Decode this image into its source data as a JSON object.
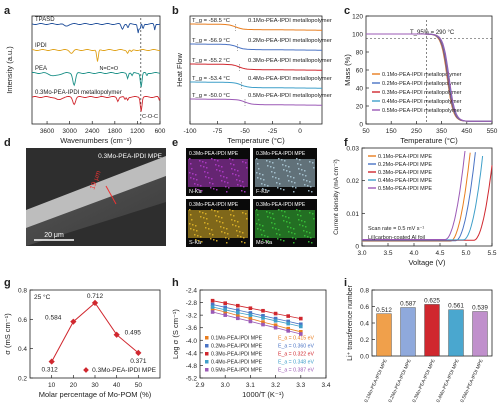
{
  "chart_data": [
    {
      "panel": "a",
      "type": "line",
      "xlabel": "Wavenumbers (cm⁻¹)",
      "ylabel": "Intensity (a.u.)",
      "xlim": [
        4000,
        600
      ],
      "xticks": [
        3600,
        3000,
        2400,
        1800,
        1200,
        600
      ],
      "grid": false,
      "series": [
        {
          "name": "TPASD",
          "color": "#1f4e9a"
        },
        {
          "name": "IPDI",
          "color": "#e0a21a"
        },
        {
          "name": "PEA",
          "color": "#1a8f86"
        },
        {
          "name": "0.3Mo-PEA-IPDI metallopolymer",
          "color": "#d0272e"
        }
      ],
      "annotations": [
        "N=C=O",
        "C-O-C"
      ]
    },
    {
      "panel": "b",
      "type": "line",
      "xlabel": "Temperature (°C)",
      "ylabel": "Heat Flow",
      "xlim": [
        -100,
        20
      ],
      "xticks": [
        -100,
        -75,
        -50,
        -25,
        0
      ],
      "series": [
        {
          "name": "0.1Mo-PEA-IPDI metallopolymer",
          "tg_label": "T_g = -58.5 °C",
          "tg": -58.5,
          "color": "#e87d1e"
        },
        {
          "name": "0.2Mo-PEA-IPDI metallopolymer",
          "tg_label": "T_g = -56.9 °C",
          "tg": -56.9,
          "color": "#4a73c4"
        },
        {
          "name": "0.3Mo-PEA-IPDI metallopolymer",
          "tg_label": "T_g = -55.2 °C",
          "tg": -55.2,
          "color": "#d0272e"
        },
        {
          "name": "0.4Mo-PEA-IPDI metallopolymer",
          "tg_label": "T_g = -53.4 °C",
          "tg": -53.4,
          "color": "#3f9fc9"
        },
        {
          "name": "0.5Mo-PEA-IPDI metallopolymer",
          "tg_label": "T_g = -50.0 °C",
          "tg": -50.0,
          "color": "#9b59b6"
        }
      ]
    },
    {
      "panel": "c",
      "type": "line",
      "xlabel": "Temperature (°C)",
      "ylabel": "Mass (%)",
      "xlim": [
        50,
        550
      ],
      "ylim": [
        0,
        120
      ],
      "xticks": [
        50,
        150,
        250,
        350,
        450,
        550
      ],
      "yticks": [
        0,
        20,
        40,
        60,
        80,
        100,
        120
      ],
      "annotation": "T_95% = 290 °C",
      "t95": 290,
      "series": [
        {
          "name": "0.1Mo-PEA-IPDI metallopolymer",
          "color": "#e87d1e"
        },
        {
          "name": "0.2Mo-PEA-IPDI metallopolymer",
          "color": "#4a73c4"
        },
        {
          "name": "0.3Mo-PEA-IPDI metallopolymer",
          "color": "#d0272e"
        },
        {
          "name": "0.4Mo-PEA-IPDI metallopolymer",
          "color": "#3f9fc9"
        },
        {
          "name": "0.5Mo-PEA-IPDI metallopolymer",
          "color": "#9b59b6"
        }
      ]
    },
    {
      "panel": "d",
      "type": "image",
      "label": "0.3Mo-PEA-IPDI MPE",
      "thickness": "19 μm",
      "scalebar": "20 μm"
    },
    {
      "panel": "e",
      "type": "image",
      "tiles": [
        {
          "sample": "0.3Mo-PEA-IPDI MPE",
          "element": "N-Ka",
          "color": "#b03cc8"
        },
        {
          "sample": "0.3Mo-PEA-IPDI MPE",
          "element": "F-Ka",
          "color": "#a9c6d6"
        },
        {
          "sample": "0.3Mo-PEA-IPDI MPE",
          "element": "S-Ka",
          "color": "#e0b428"
        },
        {
          "sample": "0.3Mo-PEA-IPDI MPE",
          "element": "Mo-Ka",
          "color": "#38c238"
        }
      ]
    },
    {
      "panel": "f",
      "type": "line",
      "xlabel": "Voltage (V)",
      "ylabel": "Current density (mA cm⁻²)",
      "xlim": [
        3.0,
        5.5
      ],
      "ylim": [
        0,
        0.03
      ],
      "xticks": [
        3.0,
        3.5,
        4.0,
        4.5,
        5.0,
        5.5
      ],
      "yticks": [
        0,
        0.01,
        0.02,
        0.03
      ],
      "notes": [
        "Scan rate = 0.5 mV s⁻¹",
        "Li||carbon-coated Al foil"
      ],
      "series": [
        {
          "name": "0.1Mo-PEA-IPDI MPE",
          "color": "#e87d1e"
        },
        {
          "name": "0.2Mo-PEA-IPDI MPE",
          "color": "#4a73c4"
        },
        {
          "name": "0.3Mo-PEA-IPDI MPE",
          "color": "#d0272e"
        },
        {
          "name": "0.4Mo-PEA-IPDI MPE",
          "color": "#3f9fc9"
        },
        {
          "name": "0.5Mo-PEA-IPDI MPE",
          "color": "#9b59b6"
        }
      ]
    },
    {
      "panel": "g",
      "type": "line",
      "xlabel": "Molar percentage of Mo-POM (%)",
      "ylabel": "σ (mS cm⁻¹)",
      "xlim": [
        0,
        60
      ],
      "ylim": [
        0.2,
        0.8
      ],
      "xticks": [
        10,
        20,
        30,
        40,
        50
      ],
      "yticks": [
        0.2,
        0.4,
        0.6,
        0.8
      ],
      "temperature": "25 °C",
      "legend": "0.3Mo-PEA-IPDI MPE",
      "x": [
        10,
        20,
        30,
        40,
        50
      ],
      "y": [
        0.312,
        0.584,
        0.712,
        0.495,
        0.371
      ],
      "labels": [
        "0.312",
        "0.584",
        "0.712",
        "0.495",
        "0.371"
      ],
      "color": "#d0272e"
    },
    {
      "panel": "h",
      "type": "scatter",
      "xlabel": "1000/T (K⁻¹)",
      "ylabel": "Log σ (S cm⁻¹)",
      "xlim": [
        2.9,
        3.4
      ],
      "ylim": [
        -5.2,
        -2.4
      ],
      "xticks": [
        2.9,
        3.0,
        3.1,
        3.2,
        3.3,
        3.4
      ],
      "yticks": [
        -5.2,
        -4.8,
        -4.4,
        -4.0,
        -3.6,
        -3.2,
        -2.8,
        -2.4
      ],
      "x": [
        2.95,
        3.0,
        3.05,
        3.1,
        3.15,
        3.2,
        3.25,
        3.3
      ],
      "series": [
        {
          "name": "0.1Mo-PEA-IPDI MPE",
          "ea": "E_a = 0.415 eV",
          "color": "#e87d1e",
          "y": [
            -3.0,
            -3.1,
            -3.21,
            -3.31,
            -3.42,
            -3.52,
            -3.63,
            -3.73
          ]
        },
        {
          "name": "0.2Mo-PEA-IPDI MPE",
          "ea": "E_a = 0.360 eV",
          "color": "#4a73c4",
          "y": [
            -2.86,
            -2.95,
            -3.04,
            -3.13,
            -3.22,
            -3.31,
            -3.4,
            -3.49
          ]
        },
        {
          "name": "0.3Mo-PEA-IPDI MPE",
          "ea": "E_a = 0.322 eV",
          "color": "#d0272e",
          "y": [
            -2.74,
            -2.82,
            -2.9,
            -2.98,
            -3.06,
            -3.15,
            -3.23,
            -3.31
          ]
        },
        {
          "name": "0.4Mo-PEA-IPDI MPE",
          "ea": "E_a = 0.348 eV",
          "color": "#3f9fc9",
          "y": [
            -2.94,
            -3.03,
            -3.12,
            -3.2,
            -3.29,
            -3.38,
            -3.47,
            -3.56
          ]
        },
        {
          "name": "0.5Mo-PEA-IPDI MPE",
          "ea": "E_a = 0.387 eV",
          "color": "#9b59b6",
          "y": [
            -3.1,
            -3.2,
            -3.3,
            -3.4,
            -3.5,
            -3.6,
            -3.7,
            -3.8
          ]
        }
      ]
    },
    {
      "panel": "i",
      "type": "bar",
      "ylabel": "Li⁺ transference number",
      "ylim": [
        0,
        0.8
      ],
      "yticks": [
        0.0,
        0.2,
        0.4,
        0.6,
        0.8
      ],
      "categories": [
        "0.1Mo-PEA-IPDI MPE",
        "0.2Mo-PEA-IPDI MPE",
        "0.3Mo-PEA-IPDI MPE",
        "0.4Mo-PEA-IPDI MPE",
        "0.5Mo-PEA-IPDI MPE"
      ],
      "values": [
        0.512,
        0.587,
        0.625,
        0.561,
        0.539
      ],
      "labels": [
        "0.512",
        "0.587",
        "0.625",
        "0.561",
        "0.539"
      ],
      "colors": [
        "#f0a04b",
        "#8fa9dc",
        "#d0272e",
        "#4aa7cf",
        "#c090cc"
      ]
    }
  ]
}
